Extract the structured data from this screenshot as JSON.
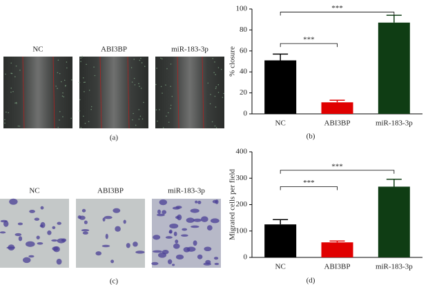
{
  "figure_panels": {
    "a": {
      "label": "(a)",
      "images": [
        "NC",
        "ABI3BP",
        "miR-183-3p"
      ]
    },
    "c": {
      "label": "(c)",
      "images": [
        "NC",
        "ABI3BP",
        "miR-183-3p"
      ]
    }
  },
  "chart_data": [
    {
      "type": "bar",
      "panel_label": "(b)",
      "ylabel": "% closure",
      "categories": [
        "NC",
        "ABI3BP",
        "miR-183-3p"
      ],
      "values": [
        51,
        11,
        87
      ],
      "errors": [
        6,
        2,
        7
      ],
      "colors": [
        "#000000",
        "#e00000",
        "#0f3d14"
      ],
      "ylim": [
        0,
        100
      ],
      "yticks": [
        0,
        20,
        40,
        60,
        80,
        100
      ],
      "annotations": [
        {
          "text": "***",
          "from": 0,
          "to": 1,
          "y": 67
        },
        {
          "text": "***",
          "from": 0,
          "to": 2,
          "y": 97
        }
      ]
    },
    {
      "type": "bar",
      "panel_label": "(d)",
      "ylabel": "Migrated cells per field",
      "categories": [
        "NC",
        "ABI3BP",
        "miR-183-3p"
      ],
      "values": [
        125,
        57,
        268
      ],
      "errors": [
        18,
        5,
        28
      ],
      "colors": [
        "#000000",
        "#e00000",
        "#0f3d14"
      ],
      "ylim": [
        0,
        400
      ],
      "yticks": [
        0,
        100,
        200,
        300,
        400
      ],
      "annotations": [
        {
          "text": "***",
          "from": 0,
          "to": 1,
          "y": 268
        },
        {
          "text": "***",
          "from": 0,
          "to": 2,
          "y": 330
        }
      ]
    }
  ]
}
